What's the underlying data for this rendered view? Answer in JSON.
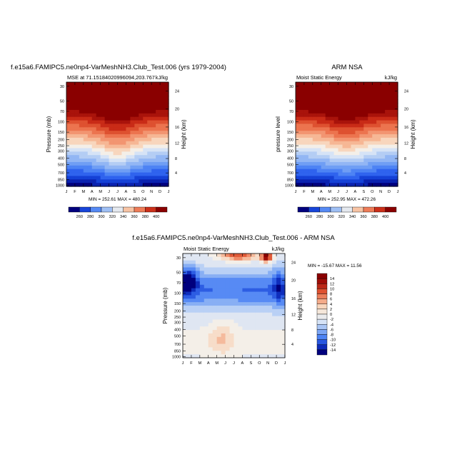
{
  "colors": {
    "scale": [
      "#00007e",
      "#0a22b0",
      "#1541d6",
      "#2f63ee",
      "#4d83f4",
      "#6f9ef4",
      "#92b6f4",
      "#b4cdf4",
      "#d6e3f6",
      "#f4efe8",
      "#f8d6bd",
      "#f6b795",
      "#f29571",
      "#ec744f",
      "#de5130",
      "#c92b17",
      "#a9130b",
      "#8a0000"
    ]
  },
  "chart_data": [
    {
      "type": "heatmap",
      "title": "f.e15a6.FAMIPC5.ne0np4-VarMeshNH3.Club_Test.006 (yrs 1979-2004)",
      "left_label": "MSE at 71.15184020996094,203.767",
      "right_label": "kJ/kg",
      "ylabel": "Pressure (mb)",
      "right_axis_label": "Height (km)",
      "x_ticks": [
        "J",
        "F",
        "M",
        "A",
        "M",
        "J",
        "J",
        "A",
        "S",
        "O",
        "N",
        "D",
        "J"
      ],
      "y_ticks": [
        "30",
        "50",
        "70",
        "100",
        "150",
        "200",
        "250",
        "300",
        "400",
        "500",
        "700",
        "850",
        "1000"
      ],
      "height_ticks": [
        "24",
        "20",
        "16",
        "12",
        "8",
        "4"
      ],
      "stats": "MIN = 252.61 MAX = 480.24",
      "levels": [
        260,
        280,
        300,
        320,
        340,
        360,
        380,
        400
      ],
      "colorbar_labels": [
        "260",
        "280",
        "300",
        "320",
        "340",
        "360",
        "380",
        "400"
      ],
      "min": 252.61,
      "max": 480.24
    },
    {
      "type": "heatmap",
      "title": "ARM NSA",
      "left_label": "Moist Static Energy",
      "right_label": "kJ/kg",
      "ylabel": "pressure level",
      "right_axis_label": "Height (km)",
      "x_ticks": [
        "J",
        "F",
        "M",
        "A",
        "M",
        "J",
        "J",
        "A",
        "S",
        "O",
        "N",
        "D",
        "J"
      ],
      "y_ticks": [
        "30",
        "50",
        "70",
        "100",
        "150",
        "200",
        "250",
        "300",
        "400",
        "500",
        "700",
        "850",
        "1000"
      ],
      "height_ticks": [
        "24",
        "20",
        "16",
        "12",
        "8",
        "4"
      ],
      "stats": "MIN = 252.95 MAX = 472.26",
      "levels": [
        260,
        280,
        300,
        320,
        340,
        360,
        380,
        400
      ],
      "colorbar_labels": [
        "260",
        "280",
        "300",
        "320",
        "340",
        "360",
        "380",
        "400"
      ],
      "min": 252.95,
      "max": 472.26
    },
    {
      "type": "heatmap",
      "title": "f.e15a6.FAMIPC5.ne0np4-VarMeshNH3.Club_Test.006 - ARM NSA",
      "left_label": "Moist Static Energy",
      "right_label": "kJ/kg",
      "ylabel": "Pressure (mb)",
      "right_axis_label": "Height (km)",
      "x_ticks": [
        "J",
        "F",
        "M",
        "A",
        "M",
        "J",
        "J",
        "A",
        "S",
        "O",
        "N",
        "D",
        "J"
      ],
      "y_ticks": [
        "30",
        "50",
        "70",
        "100",
        "150",
        "200",
        "250",
        "300",
        "400",
        "500",
        "700",
        "850",
        "1000"
      ],
      "height_ticks": [
        "24",
        "20",
        "16",
        "12",
        "8",
        "4"
      ],
      "stats": "MIN = -15.67 MAX = 11.56",
      "levels": [
        -14,
        -12,
        -10,
        -8,
        -6,
        -4,
        -2,
        0,
        2,
        4,
        6,
        8,
        10,
        12,
        14
      ],
      "colorbar_labels": [
        "14",
        "12",
        "10",
        "8",
        "6",
        "4",
        "2",
        "0",
        "-2",
        "-4",
        "-6",
        "-8",
        "-10",
        "-12",
        "-14"
      ],
      "min": -15.67,
      "max": 11.56
    }
  ]
}
